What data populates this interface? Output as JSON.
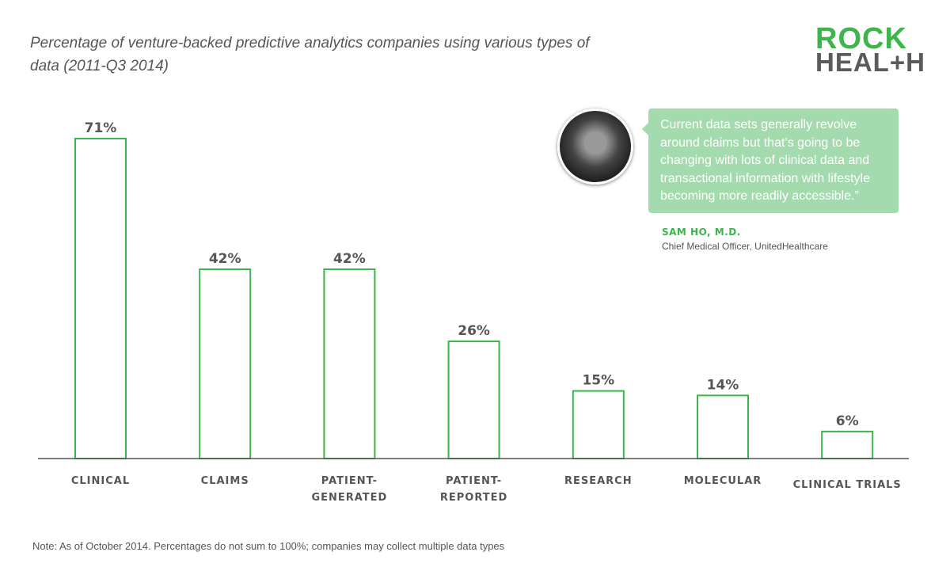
{
  "logo": {
    "line1": "ROCK",
    "line2": "HEAL+H"
  },
  "quote": {
    "text": "Current data sets generally revolve around claims but that’s going to be changing with lots of clinical data and transactional information with lifestyle becoming more readily accessible.”",
    "name": "SAM HO, M.D.",
    "role": "Chief Medical Officer, UnitedHealthcare"
  },
  "note": "Note: As of October 2014. Percentages do not sum to 100%; companies may collect multiple data types",
  "colors": {
    "bar": "#3cb54a",
    "label": "#555555"
  },
  "chart_data": {
    "type": "bar",
    "title": "Percentage of venture-backed predictive analytics companies using various types of data (2011-Q3 2014)",
    "categories": [
      [
        "CLINICAL"
      ],
      [
        "CLAIMS"
      ],
      [
        "PATIENT-",
        "GENERATED"
      ],
      [
        "PATIENT-",
        "REPORTED"
      ],
      [
        "RESEARCH"
      ],
      [
        "MOLECULAR"
      ],
      [
        "CLINICAL TRIALS"
      ]
    ],
    "values": [
      71,
      42,
      42,
      26,
      15,
      14,
      6
    ],
    "data_labels": [
      "71%",
      "42%",
      "42%",
      "26%",
      "15%",
      "14%",
      "6%"
    ],
    "xlabel": "",
    "ylabel": "",
    "ylim": [
      0,
      71
    ],
    "grid": false
  }
}
